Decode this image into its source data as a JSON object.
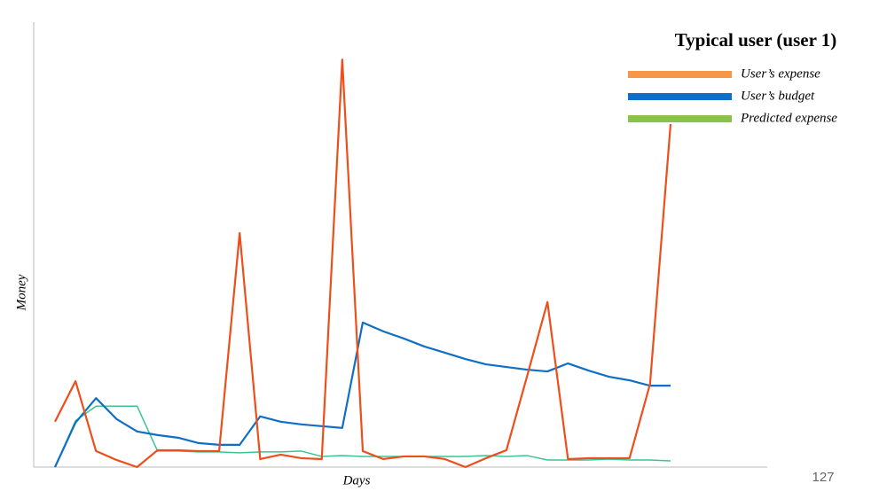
{
  "chart_data": {
    "type": "line",
    "title": "Typical user (user 1)",
    "x_label": "Days",
    "y_label": "Money",
    "page_number": "127",
    "categories": [
      null,
      null,
      null,
      null,
      null,
      null,
      null,
      null,
      null,
      null,
      null,
      null,
      null,
      null,
      null,
      null,
      null,
      null,
      null,
      null,
      null,
      null,
      null,
      null,
      null,
      null,
      null,
      null,
      null,
      null,
      null
    ],
    "ylim": [
      0,
      100
    ],
    "legend": "upper right",
    "series": [
      {
        "name": "User’s expense",
        "color": "#f79646",
        "line_color": "#ee4e1c",
        "values": [
          10.2,
          19.3,
          3.6,
          1.6,
          0,
          3.8,
          3.8,
          3.6,
          3.6,
          52.6,
          1.8,
          2.8,
          2.0,
          1.8,
          91.6,
          3.6,
          1.8,
          2.4,
          2.4,
          1.8,
          0,
          2.0,
          3.8,
          20.3,
          37.1,
          1.8,
          2.0,
          2.0,
          2.0,
          18.7,
          77.1
        ]
      },
      {
        "name": "User’s budget",
        "color": "#0f6fc6",
        "line_color": "#0f6fc6",
        "values": [
          0,
          10.0,
          15.5,
          10.8,
          8.0,
          7.2,
          6.6,
          5.4,
          5.0,
          5.0,
          11.4,
          10.2,
          9.6,
          9.2,
          8.8,
          32.5,
          30.5,
          28.9,
          27.1,
          25.7,
          24.3,
          23.1,
          22.5,
          21.9,
          21.5,
          23.3,
          21.7,
          20.3,
          19.5,
          18.3,
          18.3
        ]
      },
      {
        "name": "Predicted expense",
        "color": "#8bc34a",
        "line_color": "#3cc48f",
        "values": [
          0,
          10.4,
          13.7,
          13.7,
          13.7,
          3.6,
          3.6,
          3.4,
          3.4,
          3.2,
          3.4,
          3.4,
          3.6,
          2.4,
          2.6,
          2.4,
          2.4,
          2.4,
          2.4,
          2.4,
          2.4,
          2.6,
          2.4,
          2.6,
          1.6,
          1.6,
          1.6,
          1.8,
          1.6,
          1.6,
          1.4
        ]
      }
    ]
  }
}
